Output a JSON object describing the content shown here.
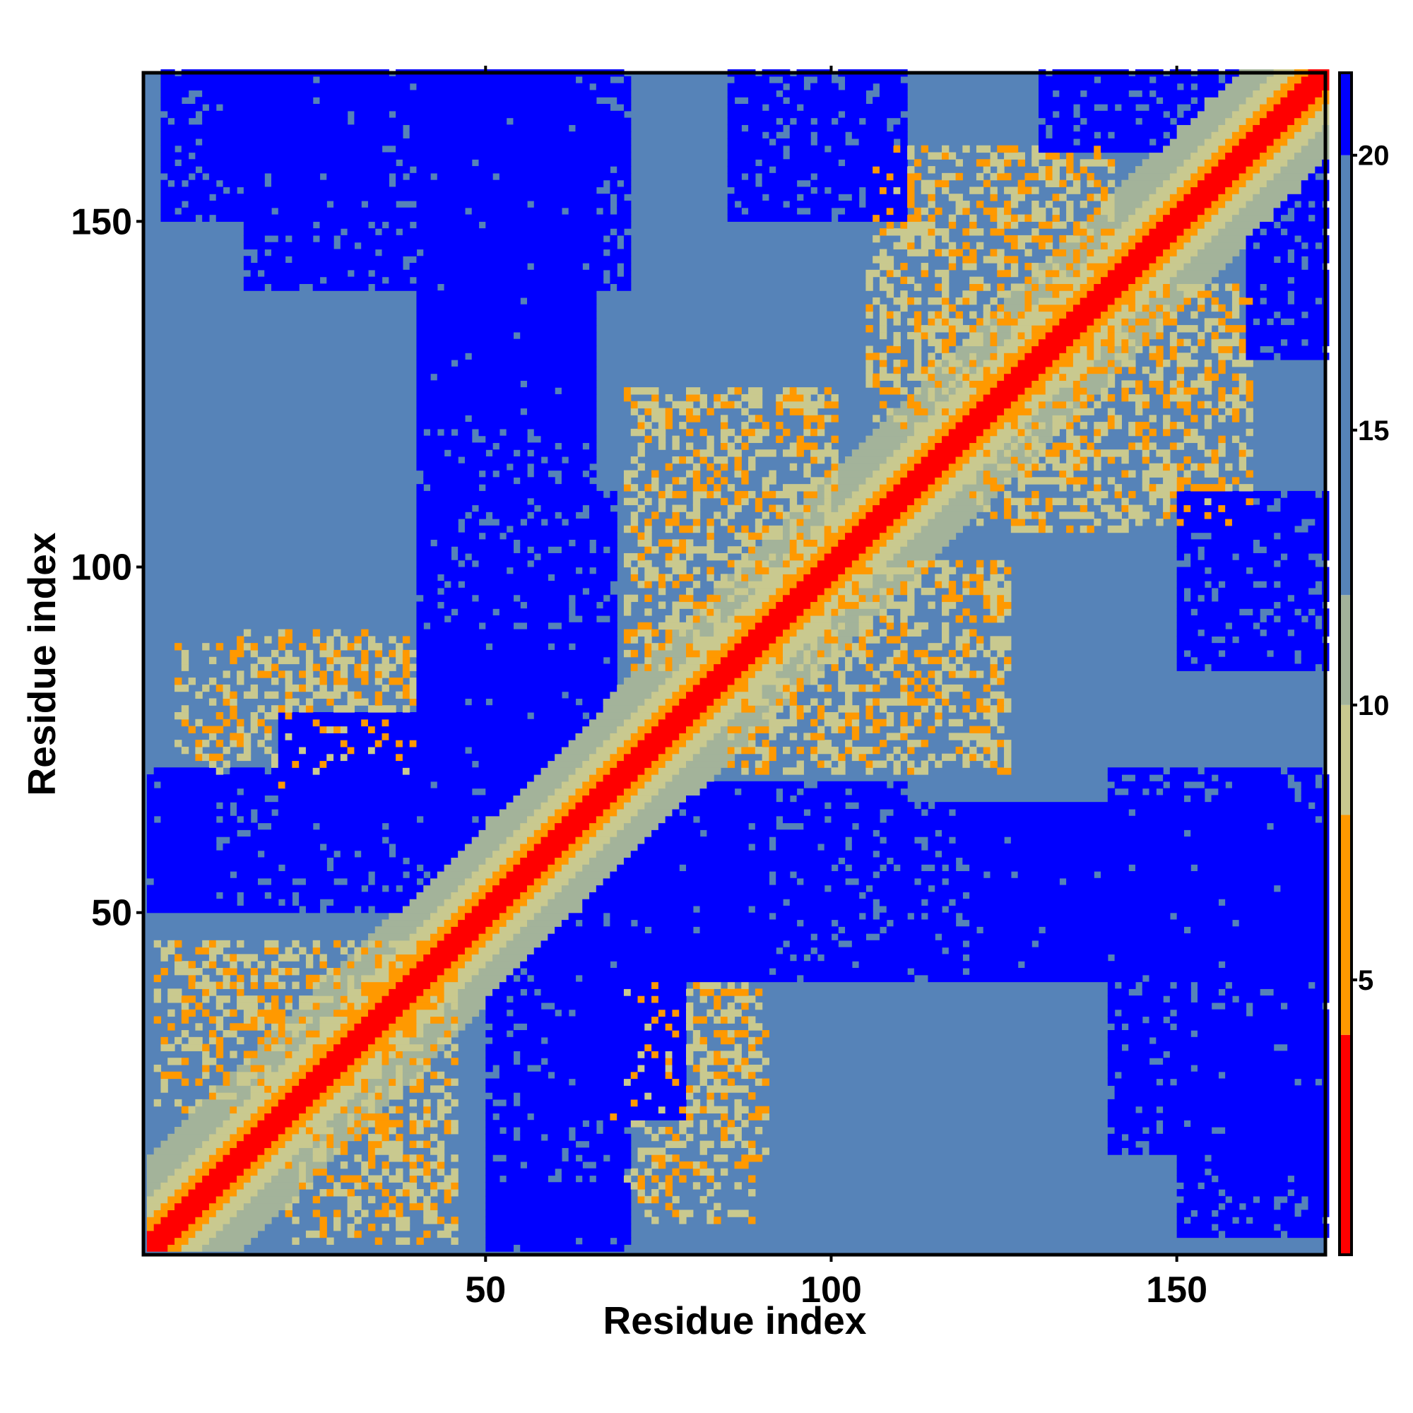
{
  "chart_data": {
    "type": "heatmap",
    "title": "",
    "xlabel": "Residue index",
    "ylabel": "Residue index",
    "n_residues": 171,
    "xlim": [
      1,
      171
    ],
    "ylim": [
      1,
      171
    ],
    "x_ticks": [
      "50",
      "100",
      "150"
    ],
    "y_ticks": [
      "50",
      "100",
      "150"
    ],
    "x_tick_values": [
      50,
      100,
      150
    ],
    "y_tick_values": [
      50,
      100,
      150
    ],
    "colorbar": {
      "ticks": [
        "5",
        "10",
        "15",
        "20"
      ],
      "tick_values": [
        5,
        10,
        15,
        20
      ],
      "range": [
        0,
        21.5
      ]
    },
    "color_scale": [
      {
        "max": 4,
        "color": "#ff0000"
      },
      {
        "max": 8,
        "color": "#ff9900"
      },
      {
        "max": 10,
        "color": "#c9c98f"
      },
      {
        "max": 12,
        "color": "#a3b39a"
      },
      {
        "max": 20,
        "color": "#5683b8"
      },
      {
        "max": 99,
        "color": "#0000ff"
      }
    ],
    "legend_placement": "right",
    "grid": false,
    "contact_regions": [
      {
        "x": [
          1,
          40
        ],
        "y": [
          1,
          40
        ],
        "band": 18,
        "note": "diagonal band"
      },
      {
        "x": [
          2,
          40
        ],
        "y": [
          21,
          45
        ],
        "kind": "antiparallel strip"
      },
      {
        "x": [
          25,
          45
        ],
        "y": [
          5,
          25
        ],
        "kind": "antiparallel strip"
      },
      {
        "x": [
          5,
          40
        ],
        "y": [
          72,
          88
        ],
        "kind": "patch"
      },
      {
        "x": [
          67,
          90
        ],
        "y": [
          10,
          40
        ],
        "kind": "patch"
      },
      {
        "x": [
          70,
          100
        ],
        "y": [
          85,
          125
        ],
        "kind": "patch"
      },
      {
        "x": [
          88,
          125
        ],
        "y": [
          70,
          100
        ],
        "kind": "patch"
      },
      {
        "x": [
          105,
          140
        ],
        "y": [
          120,
          160
        ],
        "kind": "patch"
      },
      {
        "x": [
          125,
          160
        ],
        "y": [
          105,
          140
        ],
        "kind": "patch"
      }
    ],
    "blue_regions": [
      {
        "x": [
          20,
          64
        ],
        "y": [
          60,
          78
        ]
      },
      {
        "x": [
          40,
          68
        ],
        "y": [
          78,
          110
        ]
      },
      {
        "x": [
          50,
          70
        ],
        "y": [
          1,
          55
        ]
      },
      {
        "x": [
          70,
          90
        ],
        "y": [
          40,
          65
        ]
      },
      {
        "x": [
          40,
          65
        ],
        "y": [
          120,
          171
        ]
      },
      {
        "x": [
          3,
          35
        ],
        "y": [
          150,
          171
        ]
      },
      {
        "x": [
          85,
          110
        ],
        "y": [
          150,
          171
        ]
      },
      {
        "x": [
          110,
          140
        ],
        "y": [
          40,
          65
        ]
      },
      {
        "x": [
          140,
          171
        ],
        "y": [
          15,
          70
        ]
      },
      {
        "x": [
          160,
          171
        ],
        "y": [
          130,
          171
        ]
      },
      {
        "x": [
          1,
          10
        ],
        "y": [
          50,
          70
        ]
      }
    ]
  }
}
